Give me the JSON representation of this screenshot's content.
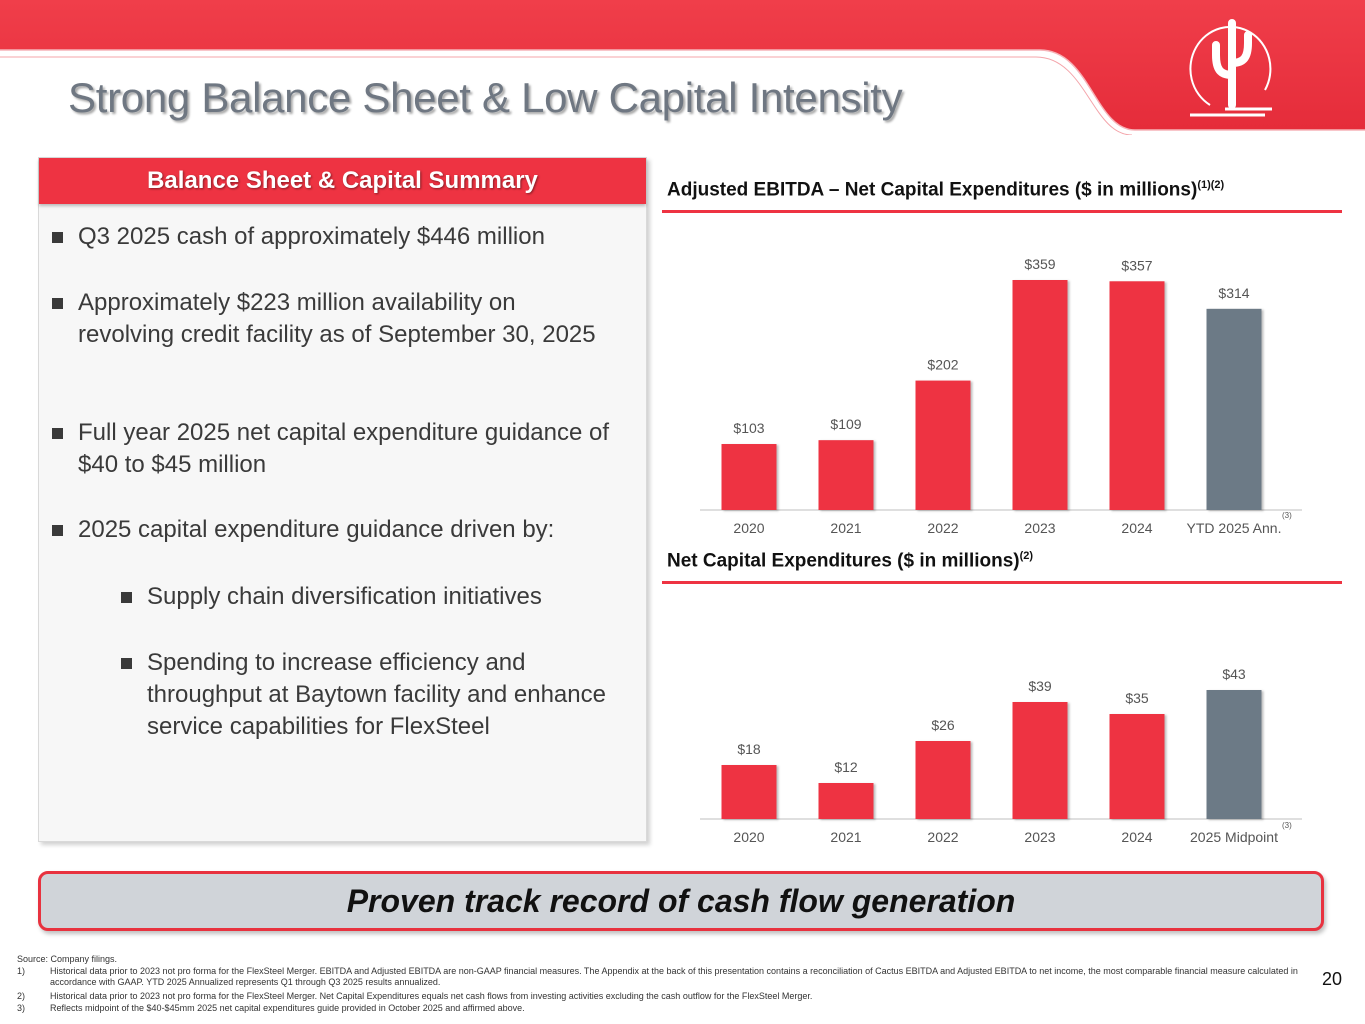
{
  "slide": {
    "title": "Strong Balance Sheet & Low Capital Intensity",
    "page_number": "20",
    "brand_color": "#ee3342",
    "gray_color": "#6c7a86"
  },
  "panel": {
    "header": "Balance Sheet & Capital Summary",
    "bullets": [
      "Q3 2025 cash of approximately $446 million",
      "Approximately $223 million availability on revolving credit facility as of September 30, 2025",
      "Full year 2025 net capital expenditure guidance of $40 to $45 million",
      "2025 capital expenditure guidance driven by:"
    ],
    "sub_bullets": [
      "Supply chain diversification initiatives",
      "Spending to increase efficiency and throughput at Baytown facility and enhance service capabilities for FlexSteel"
    ]
  },
  "chart_data": [
    {
      "type": "bar",
      "title": "Adjusted EBITDA – Net Capital Expenditures ($ in millions)",
      "title_note": "(1)(2)",
      "categories": [
        "2020",
        "2021",
        "2022",
        "2023",
        "2024",
        "YTD 2025 Ann."
      ],
      "values": [
        103,
        109,
        202,
        359,
        357,
        314
      ],
      "labels": [
        "$103",
        "$109",
        "$202",
        "$359",
        "$357",
        "$314"
      ],
      "bar_colors": [
        "#ee3342",
        "#ee3342",
        "#ee3342",
        "#ee3342",
        "#ee3342",
        "#6c7a86"
      ],
      "last_category_note": "(3)",
      "ylim": [
        0,
        400
      ],
      "grid": false
    },
    {
      "type": "bar",
      "title": "Net Capital Expenditures ($ in millions)",
      "title_note": "(2)",
      "categories": [
        "2020",
        "2021",
        "2022",
        "2023",
        "2024",
        "2025 Midpoint"
      ],
      "values": [
        18,
        12,
        26,
        39,
        35,
        43
      ],
      "labels": [
        "$18",
        "$12",
        "$26",
        "$39",
        "$35",
        "$43"
      ],
      "bar_colors": [
        "#ee3342",
        "#ee3342",
        "#ee3342",
        "#ee3342",
        "#ee3342",
        "#6c7a86"
      ],
      "last_category_note": "(3)",
      "ylim": [
        0,
        50
      ],
      "grid": false
    }
  ],
  "banner": {
    "text": "Proven track record of cash flow generation"
  },
  "footnotes": {
    "source": "Source: Company filings.",
    "items": [
      {
        "num": "1)",
        "text": "Historical data prior to 2023 not pro forma for the FlexSteel Merger. EBITDA and Adjusted EBITDA are non-GAAP financial measures. The Appendix at the back of this presentation contains a reconciliation of Cactus EBITDA and Adjusted EBITDA to net income, the most comparable financial measure calculated in accordance with GAAP. YTD 2025 Annualized represents Q1 through Q3 2025 results annualized."
      },
      {
        "num": "2)",
        "text": "Historical data prior to 2023 not pro forma for the FlexSteel Merger.  Net Capital Expenditures equals net cash flows from investing activities excluding the cash outflow for the FlexSteel Merger."
      },
      {
        "num": "3)",
        "text": "Reflects midpoint of the $40-$45mm 2025 net capital expenditures guide provided in October 2025 and affirmed above."
      }
    ]
  }
}
